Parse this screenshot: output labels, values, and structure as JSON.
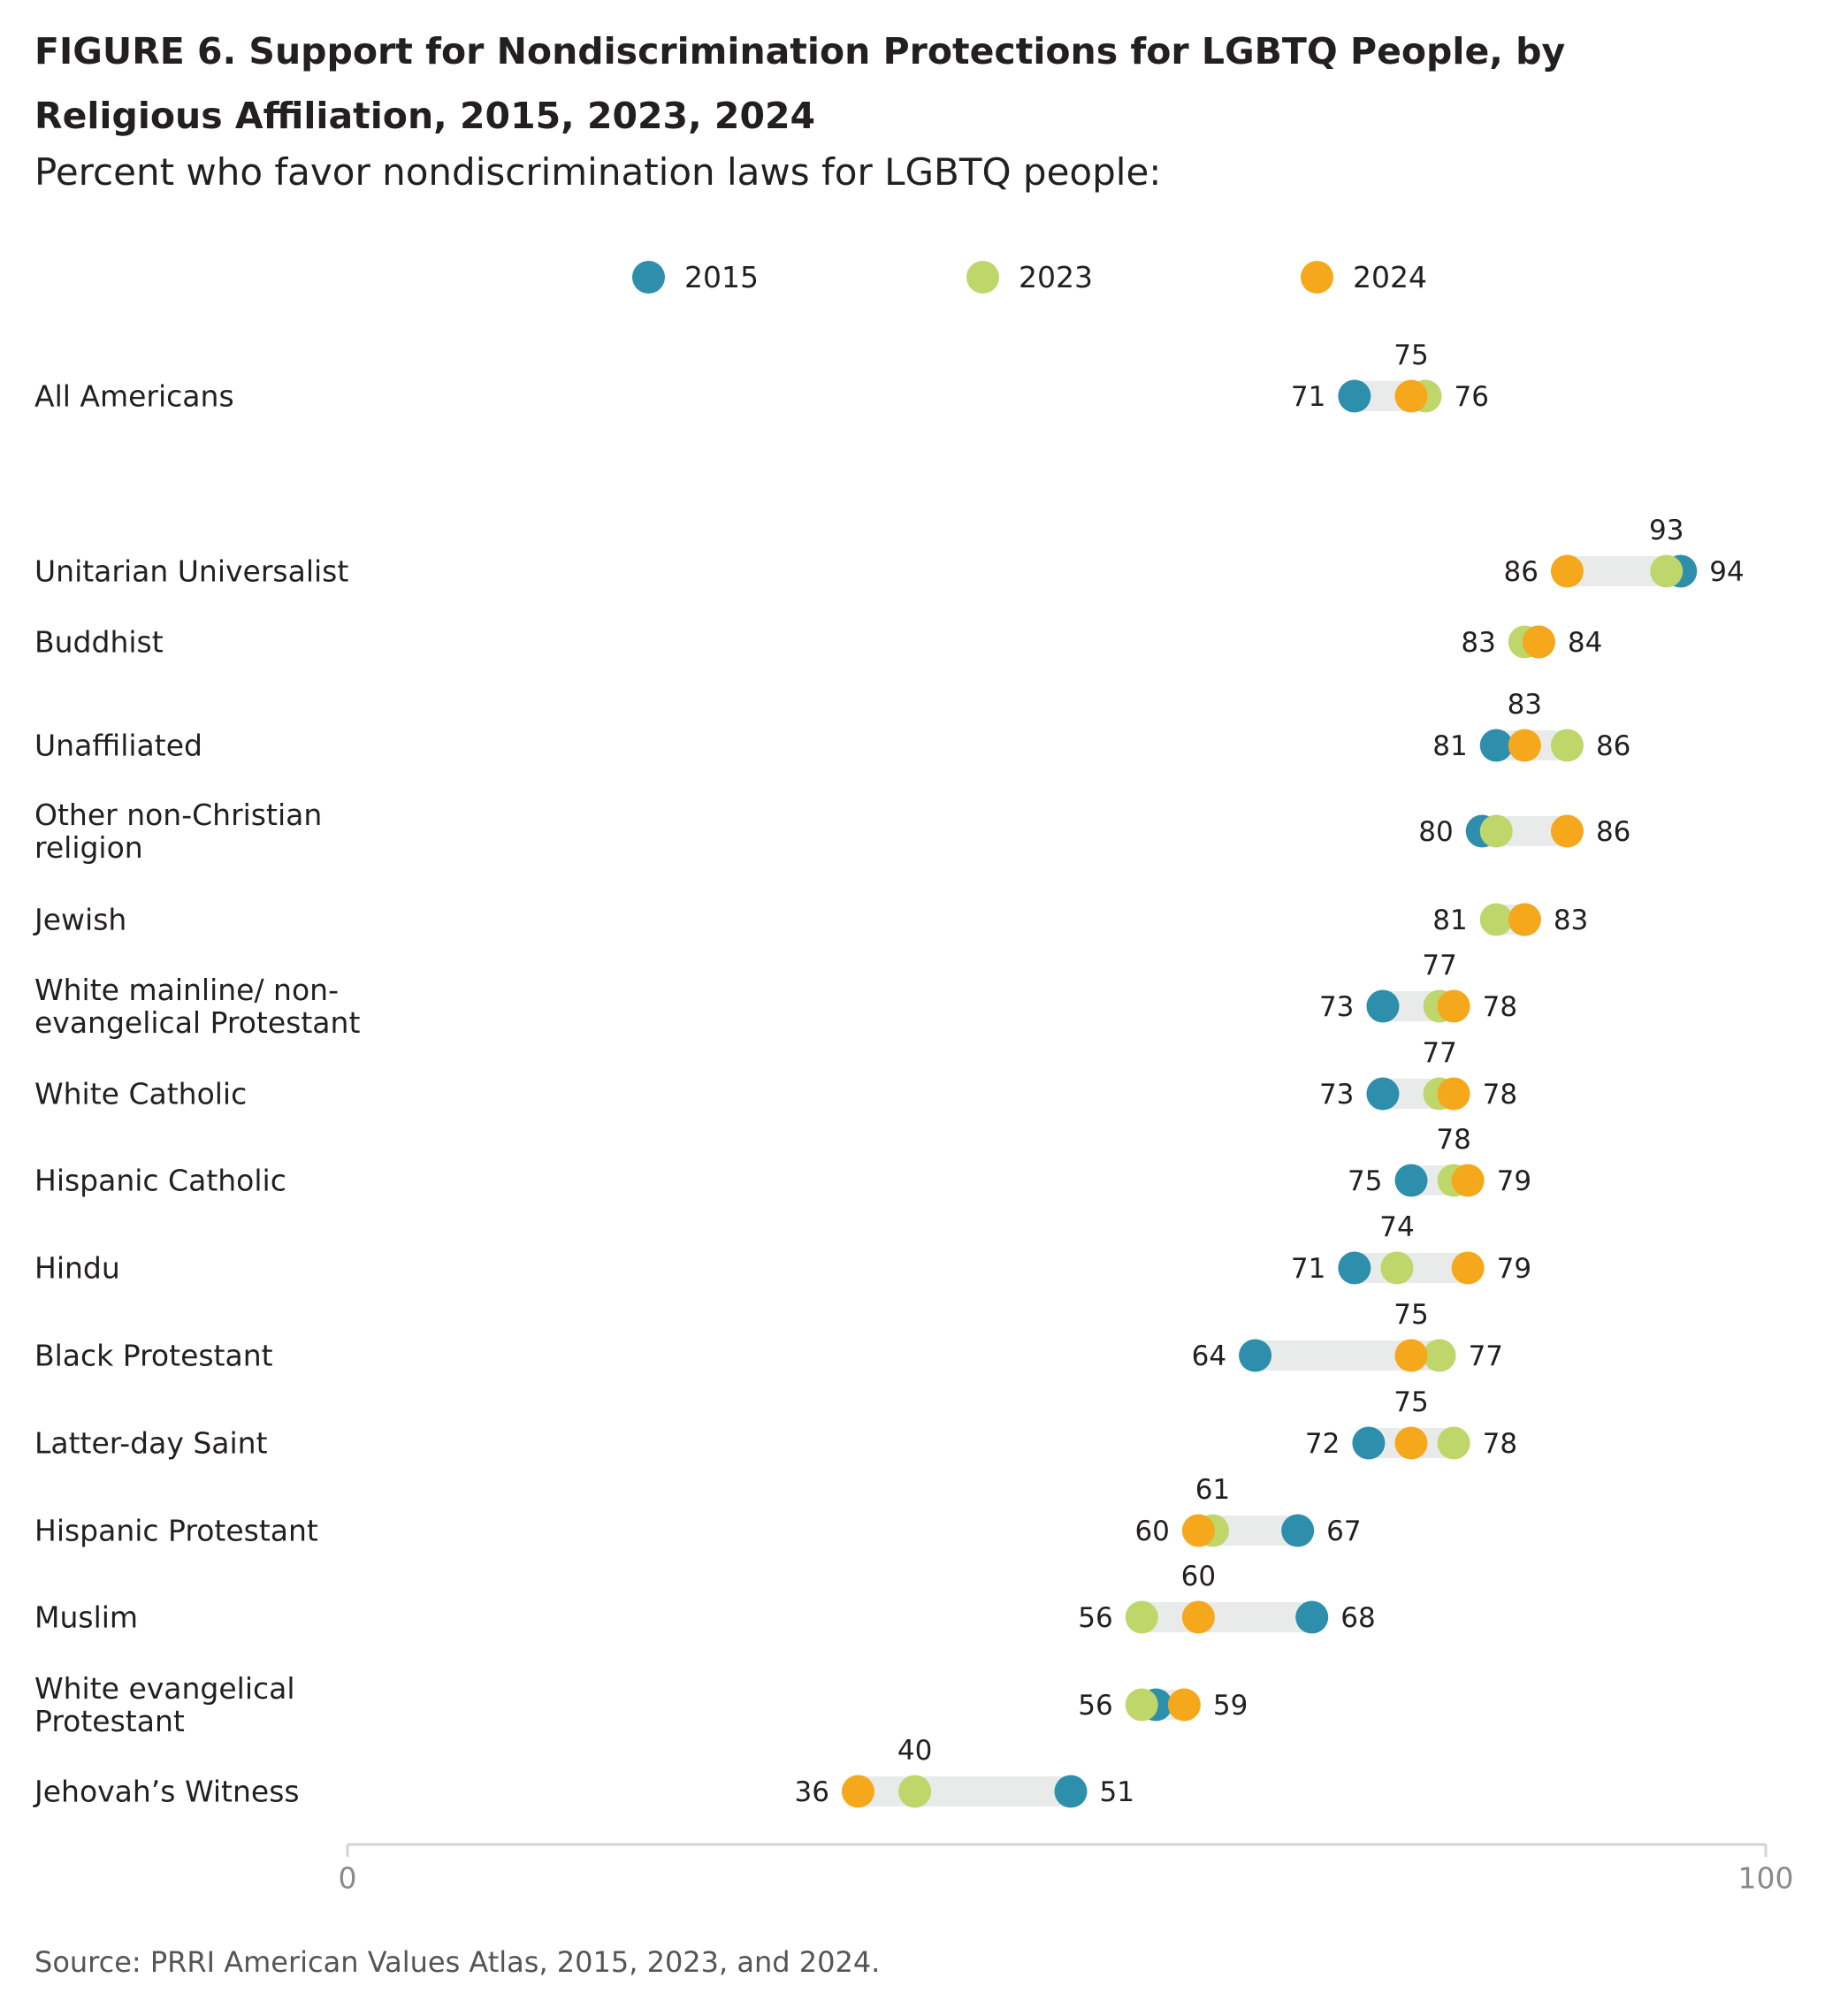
{
  "title": "FIGURE 6. Support for Nondiscrimination Protections for LGBTQ People, by Religious Affiliation, 2015, 2023, 2024",
  "subtitle": "Percent who favor nondiscrimination laws for LGBTQ people:",
  "source": "Source: PRRI American Values Atlas, 2015, 2023, and 2024.",
  "colors": {
    "2015": "#2e8fac",
    "2023": "#bfd66a",
    "2024": "#f5a81c",
    "range_bar": "#e9eaea",
    "axis": "#d3d3d3",
    "tick_label": "#8a8a8a"
  },
  "legend": [
    {
      "label": "2015",
      "color": "#2e8fac"
    },
    {
      "label": "2023",
      "color": "#bfd66a"
    },
    {
      "label": "2024",
      "color": "#f5a81c"
    }
  ],
  "chart_data": {
    "type": "scatter",
    "subtype": "dot-range",
    "title": "FIGURE 6. Support for Nondiscrimination Protections for LGBTQ People, by Religious Affiliation, 2015, 2023, 2024",
    "subtitle": "Percent who favor nondiscrimination laws for LGBTQ people:",
    "xlim": [
      0,
      100
    ],
    "x_ticks": [
      "0",
      "100"
    ],
    "grid": false,
    "legend_position": "top",
    "categories": [
      "All Americans",
      "Unitarian Universalist",
      "Buddhist",
      "Unaffiliated",
      "Other non-Christian religion",
      "Jewish",
      "White mainline/ non-evangelical Protestant",
      "White Catholic",
      "Hispanic Catholic",
      "Hindu",
      "Black Protestant",
      "Latter-day Saint",
      "Hispanic Protestant",
      "Muslim",
      "White evangelical Protestant",
      "Jehovah’s Witness"
    ],
    "category_lines": [
      [
        "All Americans"
      ],
      [
        "Unitarian Universalist"
      ],
      [
        "Buddhist"
      ],
      [
        "Unaffiliated"
      ],
      [
        "Other non-Christian",
        "religion"
      ],
      [
        "Jewish"
      ],
      [
        "White mainline/ non-",
        "evangelical Protestant"
      ],
      [
        "White Catholic"
      ],
      [
        "Hispanic Catholic"
      ],
      [
        "Hindu"
      ],
      [
        "Black Protestant"
      ],
      [
        "Latter-day Saint"
      ],
      [
        "Hispanic Protestant"
      ],
      [
        "Muslim"
      ],
      [
        "White evangelical",
        "Protestant"
      ],
      [
        "Jehovah’s Witness"
      ]
    ],
    "series": [
      {
        "name": "2015",
        "values": [
          71,
          94,
          84,
          81,
          80,
          83,
          73,
          73,
          75,
          71,
          64,
          72,
          67,
          68,
          57,
          51
        ]
      },
      {
        "name": "2023",
        "values": [
          76,
          93,
          83,
          86,
          81,
          81,
          77,
          77,
          78,
          74,
          77,
          78,
          61,
          56,
          56,
          40
        ]
      },
      {
        "name": "2024",
        "values": [
          75,
          86,
          84,
          83,
          86,
          83,
          78,
          78,
          79,
          79,
          75,
          75,
          60,
          60,
          59,
          36
        ]
      }
    ],
    "value_labels": [
      {
        "left": "71",
        "top": "75",
        "right": "76"
      },
      {
        "left": "86",
        "top": "93",
        "right": "94"
      },
      {
        "left": "83",
        "top": "",
        "right": "84"
      },
      {
        "left": "81",
        "top": "83",
        "right": "86"
      },
      {
        "left": "80",
        "top": "",
        "right": "86"
      },
      {
        "left": "81",
        "top": "",
        "right": "83"
      },
      {
        "left": "73",
        "top": "77",
        "right": "78"
      },
      {
        "left": "73",
        "top": "77",
        "right": "78"
      },
      {
        "left": "75",
        "top": "78",
        "right": "79"
      },
      {
        "left": "71",
        "top": "74",
        "right": "79"
      },
      {
        "left": "64",
        "top": "75",
        "right": "77"
      },
      {
        "left": "72",
        "top": "75",
        "right": "78"
      },
      {
        "left": "60",
        "top": "61",
        "right": "67"
      },
      {
        "left": "56",
        "top": "60",
        "right": "68"
      },
      {
        "left": "56",
        "top": "",
        "right": "59"
      },
      {
        "left": "36",
        "top": "40",
        "right": "51"
      }
    ]
  }
}
